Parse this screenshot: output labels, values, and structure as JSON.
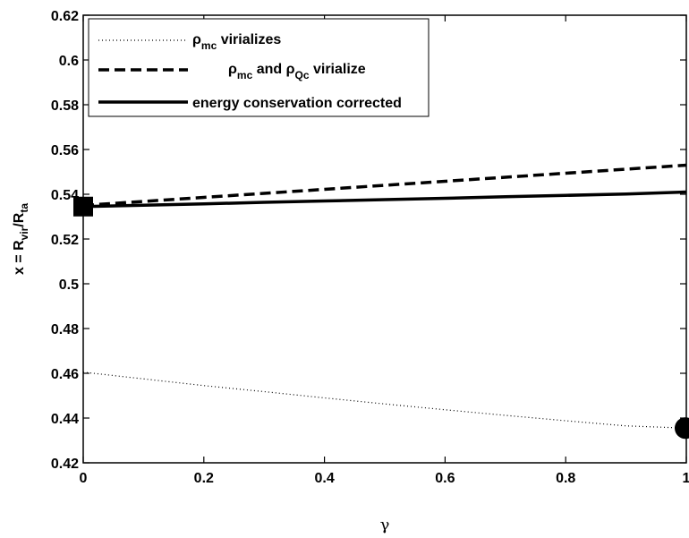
{
  "chart_data": {
    "type": "line",
    "title": "",
    "xlabel": "γ",
    "ylabel": {
      "prefix": "x = R",
      "sub1": "vir",
      "mid": "/R",
      "sub2": "ta"
    },
    "xlim": [
      0,
      1
    ],
    "ylim": [
      0.42,
      0.62
    ],
    "x_ticks": [
      "0",
      "0.2",
      "0.4",
      "0.6",
      "0.8",
      "1"
    ],
    "y_ticks": [
      "0.42",
      "0.44",
      "0.46",
      "0.48",
      "0.5",
      "0.52",
      "0.54",
      "0.56",
      "0.58",
      "0.6",
      "0.62"
    ],
    "grid": false,
    "legend_position": "top-left",
    "legend": [
      {
        "symbol": "ρ",
        "sub": "mc",
        "text": " virializes",
        "style": "dotted"
      },
      {
        "symbol": "ρ",
        "sub": "mc",
        "text": " and ",
        "symbol2": "ρ",
        "sub2": "Qc",
        "text2": " virialize",
        "style": "dashed"
      },
      {
        "text": "energy conservation corrected",
        "style": "solid"
      }
    ],
    "series": [
      {
        "style": "dotted",
        "color": "#000000",
        "x": [
          0,
          0.1,
          0.2,
          0.3,
          0.4,
          0.5,
          0.6,
          0.7,
          0.8,
          0.9,
          1.0
        ],
        "y": [
          0.4605,
          0.4575,
          0.4545,
          0.4518,
          0.449,
          0.4463,
          0.4437,
          0.4412,
          0.4388,
          0.4365,
          0.4355
        ]
      },
      {
        "style": "dashed",
        "color": "#000000",
        "x": [
          0,
          0.1,
          0.2,
          0.3,
          0.4,
          0.5,
          0.6,
          0.7,
          0.8,
          0.9,
          1.0
        ],
        "y": [
          0.535,
          0.5368,
          0.5386,
          0.5404,
          0.5422,
          0.544,
          0.5458,
          0.5476,
          0.5494,
          0.5512,
          0.553
        ]
      },
      {
        "style": "solid",
        "color": "#000000",
        "x": [
          0,
          0.1,
          0.2,
          0.3,
          0.4,
          0.5,
          0.6,
          0.7,
          0.8,
          0.9,
          1.0
        ],
        "y": [
          0.5345,
          0.5351,
          0.5357,
          0.5364,
          0.537,
          0.5376,
          0.5382,
          0.5389,
          0.5395,
          0.5401,
          0.541
        ]
      }
    ],
    "markers": [
      {
        "shape": "square",
        "x": 0,
        "y": 0.5345
      },
      {
        "shape": "circle",
        "x": 1,
        "y": 0.4355
      }
    ]
  }
}
